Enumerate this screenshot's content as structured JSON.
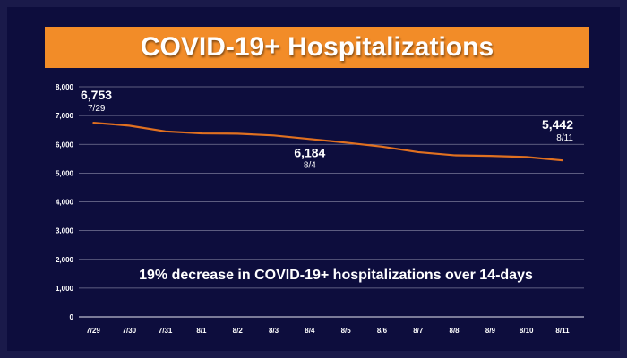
{
  "chart_data": {
    "type": "line",
    "title": "COVID-19+ Hospitalizations",
    "categories": [
      "7/29",
      "7/30",
      "7/31",
      "8/1",
      "8/2",
      "8/3",
      "8/4",
      "8/5",
      "8/6",
      "8/7",
      "8/8",
      "8/9",
      "8/10",
      "8/11"
    ],
    "series": [
      {
        "values": [
          6753,
          6650,
          6450,
          6380,
          6370,
          6310,
          6184,
          6060,
          5920,
          5730,
          5620,
          5600,
          5560,
          5442
        ]
      }
    ],
    "ylim": [
      0,
      8000
    ],
    "yticks": [
      0,
      1000,
      2000,
      3000,
      4000,
      5000,
      6000,
      7000,
      8000
    ],
    "ytick_labels": [
      "0",
      "1,000",
      "2,000",
      "3,000",
      "4,000",
      "5,000",
      "6,000",
      "7,000",
      "8,000"
    ],
    "grid": true,
    "line_color": "#e07020",
    "data_labels": [
      {
        "index": 0,
        "value": "6,753",
        "date": "7/29"
      },
      {
        "index": 6,
        "value": "6,184",
        "date": "8/4"
      },
      {
        "index": 13,
        "value": "5,442",
        "date": "8/11"
      }
    ],
    "annotation": "19% decrease in COVID-19+ hospitalizations over 14-days"
  },
  "colors": {
    "background": "#0d0d3d",
    "title_bar": "#f28c28",
    "text": "#ffffff",
    "grid": "#cfcfe0"
  }
}
